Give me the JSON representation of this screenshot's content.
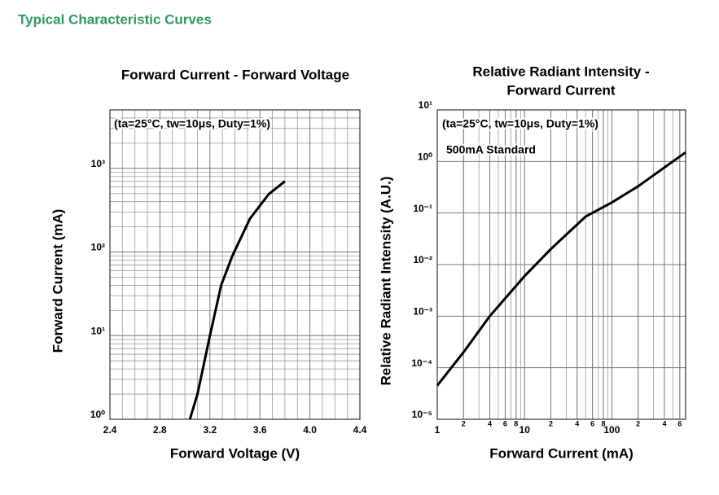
{
  "header": {
    "title": "Typical Characteristic Curves"
  },
  "chart_data": [
    {
      "type": "line",
      "title": [
        "Forward Current - Forward Voltage"
      ],
      "annotations": [
        "(ta=25°C, tw=10μs, Duty=1%)"
      ],
      "xlabel": "Forward Voltage (V)",
      "ylabel": "Forward Current (mA)",
      "x": [
        3.04,
        3.1,
        3.2,
        3.29,
        3.38,
        3.52,
        3.67,
        3.8
      ],
      "values": [
        1,
        2,
        10,
        40,
        90,
        250,
        490,
        700
      ],
      "color": "#000000",
      "xscale": "linear",
      "yscale": "log",
      "xlim": [
        2.4,
        4.4
      ],
      "xticks": [
        2.4,
        2.8,
        3.2,
        3.6,
        {
          "value": 4,
          "label": "4.0"
        },
        4.4
      ],
      "ylim": [
        1,
        5000
      ],
      "yticks": [
        {
          "value": 1,
          "label": "10⁰"
        },
        {
          "value": 10,
          "label": "10¹"
        },
        {
          "value": 100,
          "label": "10²"
        },
        {
          "value": 1000,
          "label": "10³"
        }
      ],
      "grid": true
    },
    {
      "type": "line",
      "title": [
        "Relative Radiant Intensity -",
        "Forward Current"
      ],
      "annotations": [
        "(ta=25°C, tw=10μs, Duty=1%)",
        "500mA Standard"
      ],
      "xlabel": "Forward Current (mA)",
      "ylabel": "Relative Radiant Intensity (A.U.)",
      "x": [
        1,
        2,
        4,
        10,
        20,
        50,
        100,
        200,
        500,
        700
      ],
      "values": [
        4.5e-05,
        0.0002,
        0.001,
        0.006,
        0.02,
        0.085,
        0.16,
        0.33,
        1.0,
        1.5
      ],
      "color": "#000000",
      "xscale": "log",
      "yscale": "log",
      "xlim": [
        1,
        700
      ],
      "xticks": [
        1,
        2,
        4,
        6,
        8,
        10,
        {
          "value": 20,
          "label": "2"
        },
        {
          "value": 40,
          "label": "4"
        },
        {
          "value": 60,
          "label": "6"
        },
        {
          "value": 80,
          "label": "8"
        },
        100,
        {
          "value": 200,
          "label": "2"
        },
        {
          "value": 400,
          "label": "4"
        },
        {
          "value": 600,
          "label": "6"
        }
      ],
      "ylim": [
        1e-05,
        10
      ],
      "yticks": [
        {
          "value": 1e-05,
          "label": "10⁻⁵"
        },
        {
          "value": 0.0001,
          "label": "10⁻⁴"
        },
        {
          "value": 0.001,
          "label": "10⁻³"
        },
        {
          "value": 0.01,
          "label": "10⁻²"
        },
        {
          "value": 0.1,
          "label": "10⁻¹"
        },
        {
          "value": 1,
          "label": "10⁰"
        },
        {
          "value": 10,
          "label": "10¹"
        }
      ],
      "grid": true
    }
  ]
}
